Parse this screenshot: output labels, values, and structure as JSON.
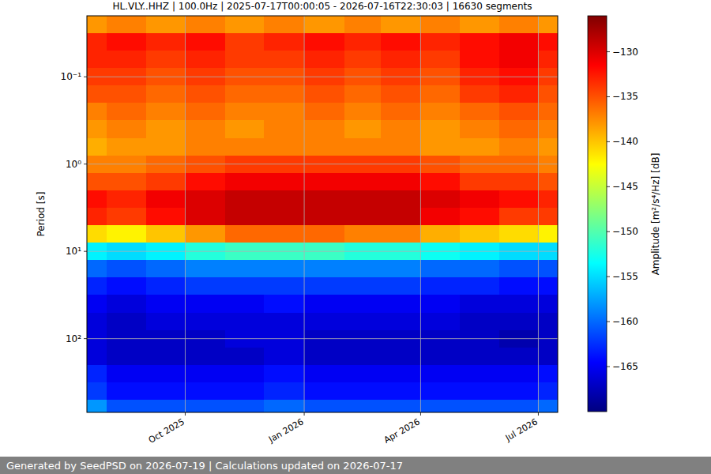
{
  "chart_data": {
    "type": "heatmap",
    "title": "HL.VLY..HHZ | 100.0Hz | 2025-07-17T00:00:05 - 2026-07-16T22:30:03 | 16630 segments",
    "y_label": "Period [s]",
    "log": "y",
    "grid": true,
    "xlim": [
      "2025-07-17",
      "2026-07-16"
    ],
    "xticks": [
      {
        "value": "2025-10",
        "label": "Oct 2025"
      },
      {
        "value": "2026-01",
        "label": "Jan 2026"
      },
      {
        "value": "2026-04",
        "label": "Apr 2026"
      },
      {
        "value": "2026-07",
        "label": "Jul 2026"
      }
    ],
    "ylim": [
      700,
      0.02
    ],
    "yticks": [
      {
        "value": 0.1,
        "label": "10⁻¹"
      },
      {
        "value": 1,
        "label": "10⁰"
      },
      {
        "value": 10,
        "label": "10¹"
      },
      {
        "value": 100,
        "label": "10²"
      }
    ],
    "x": [
      "2025-07",
      "2025-08",
      "2025-09",
      "2025-10",
      "2025-11",
      "2025-12",
      "2026-01",
      "2026-02",
      "2026-03",
      "2026-04",
      "2026-05",
      "2026-06",
      "2026-07"
    ],
    "y": [
      0.025,
      0.04,
      0.063,
      0.1,
      0.16,
      0.25,
      0.4,
      0.63,
      1,
      1.6,
      2.5,
      4,
      6.3,
      10,
      16,
      25,
      40,
      63,
      100,
      160,
      250,
      400,
      630
    ],
    "values": [
      [
        -138,
        -137,
        -138,
        -137,
        -138,
        -137,
        -138,
        -137,
        -138,
        -137,
        -138,
        -137,
        -138
      ],
      [
        -133,
        -132,
        -133,
        -132,
        -134,
        -133,
        -132,
        -133,
        -132,
        -133,
        -132,
        -131,
        -132
      ],
      [
        -133,
        -133,
        -134,
        -133,
        -134,
        -134,
        -133,
        -134,
        -133,
        -134,
        -132,
        -131,
        -133
      ],
      [
        -134,
        -134,
        -135,
        -134,
        -135,
        -135,
        -134,
        -135,
        -134,
        -135,
        -133,
        -132,
        -134
      ],
      [
        -135,
        -135,
        -136,
        -135,
        -136,
        -136,
        -135,
        -136,
        -135,
        -136,
        -134,
        -133,
        -135
      ],
      [
        -137,
        -136,
        -137,
        -136,
        -137,
        -137,
        -136,
        -137,
        -136,
        -137,
        -136,
        -135,
        -136
      ],
      [
        -138,
        -137,
        -138,
        -137,
        -138,
        -137,
        -137,
        -138,
        -137,
        -138,
        -137,
        -136,
        -137
      ],
      [
        -139,
        -138,
        -138,
        -137,
        -137,
        -137,
        -137,
        -137,
        -137,
        -138,
        -138,
        -137,
        -138
      ],
      [
        -137,
        -137,
        -136,
        -135,
        -134,
        -134,
        -134,
        -134,
        -134,
        -135,
        -136,
        -136,
        -137
      ],
      [
        -135,
        -135,
        -134,
        -132,
        -131,
        -131,
        -131,
        -131,
        -131,
        -132,
        -134,
        -134,
        -135
      ],
      [
        -132,
        -133,
        -131,
        -130,
        -129,
        -129,
        -129,
        -129,
        -129,
        -130,
        -131,
        -132,
        -133
      ],
      [
        -133,
        -134,
        -132,
        -130,
        -129,
        -129,
        -129,
        -129,
        -129,
        -131,
        -132,
        -134,
        -134
      ],
      [
        -141,
        -142,
        -140,
        -138,
        -136,
        -136,
        -136,
        -137,
        -137,
        -139,
        -140,
        -141,
        -142
      ],
      [
        -154,
        -155,
        -154,
        -152,
        -151,
        -151,
        -151,
        -152,
        -152,
        -153,
        -154,
        -155,
        -155
      ],
      [
        -160,
        -161,
        -160,
        -159,
        -159,
        -159,
        -159,
        -159,
        -159,
        -160,
        -160,
        -161,
        -161
      ],
      [
        -163,
        -164,
        -163,
        -162,
        -162,
        -162,
        -162,
        -162,
        -162,
        -163,
        -163,
        -164,
        -164
      ],
      [
        -165,
        -166,
        -165,
        -165,
        -165,
        -164,
        -165,
        -165,
        -165,
        -165,
        -166,
        -166,
        -166
      ],
      [
        -166,
        -167,
        -166,
        -166,
        -166,
        -166,
        -166,
        -166,
        -166,
        -166,
        -167,
        -167,
        -167
      ],
      [
        -166,
        -167,
        -167,
        -167,
        -166,
        -166,
        -167,
        -167,
        -167,
        -167,
        -167,
        -168,
        -167
      ],
      [
        -166,
        -167,
        -167,
        -167,
        -167,
        -166,
        -167,
        -167,
        -167,
        -167,
        -167,
        -167,
        -167
      ],
      [
        -163,
        -165,
        -165,
        -165,
        -165,
        -164,
        -165,
        -165,
        -165,
        -165,
        -165,
        -165,
        -164
      ],
      [
        -162,
        -164,
        -164,
        -164,
        -164,
        -163,
        -164,
        -164,
        -164,
        -164,
        -164,
        -164,
        -163
      ],
      [
        -158,
        -161,
        -161,
        -161,
        -161,
        -160,
        -161,
        -161,
        -161,
        -161,
        -161,
        -161,
        -160
      ]
    ],
    "colorbar": {
      "label": "Amplitude [m²/s⁴/Hz] [dB]",
      "range": [
        -170,
        -126
      ],
      "ticks": [
        {
          "value": -165,
          "label": "−165"
        },
        {
          "value": -160,
          "label": "−160"
        },
        {
          "value": -155,
          "label": "−155"
        },
        {
          "value": -150,
          "label": "−150"
        },
        {
          "value": -145,
          "label": "−145"
        },
        {
          "value": -140,
          "label": "−140"
        },
        {
          "value": -135,
          "label": "−135"
        },
        {
          "value": -130,
          "label": "−130"
        }
      ]
    }
  },
  "footer": "Generated by SeedPSD on 2026-07-19 | Calculations updated on 2026-07-17"
}
